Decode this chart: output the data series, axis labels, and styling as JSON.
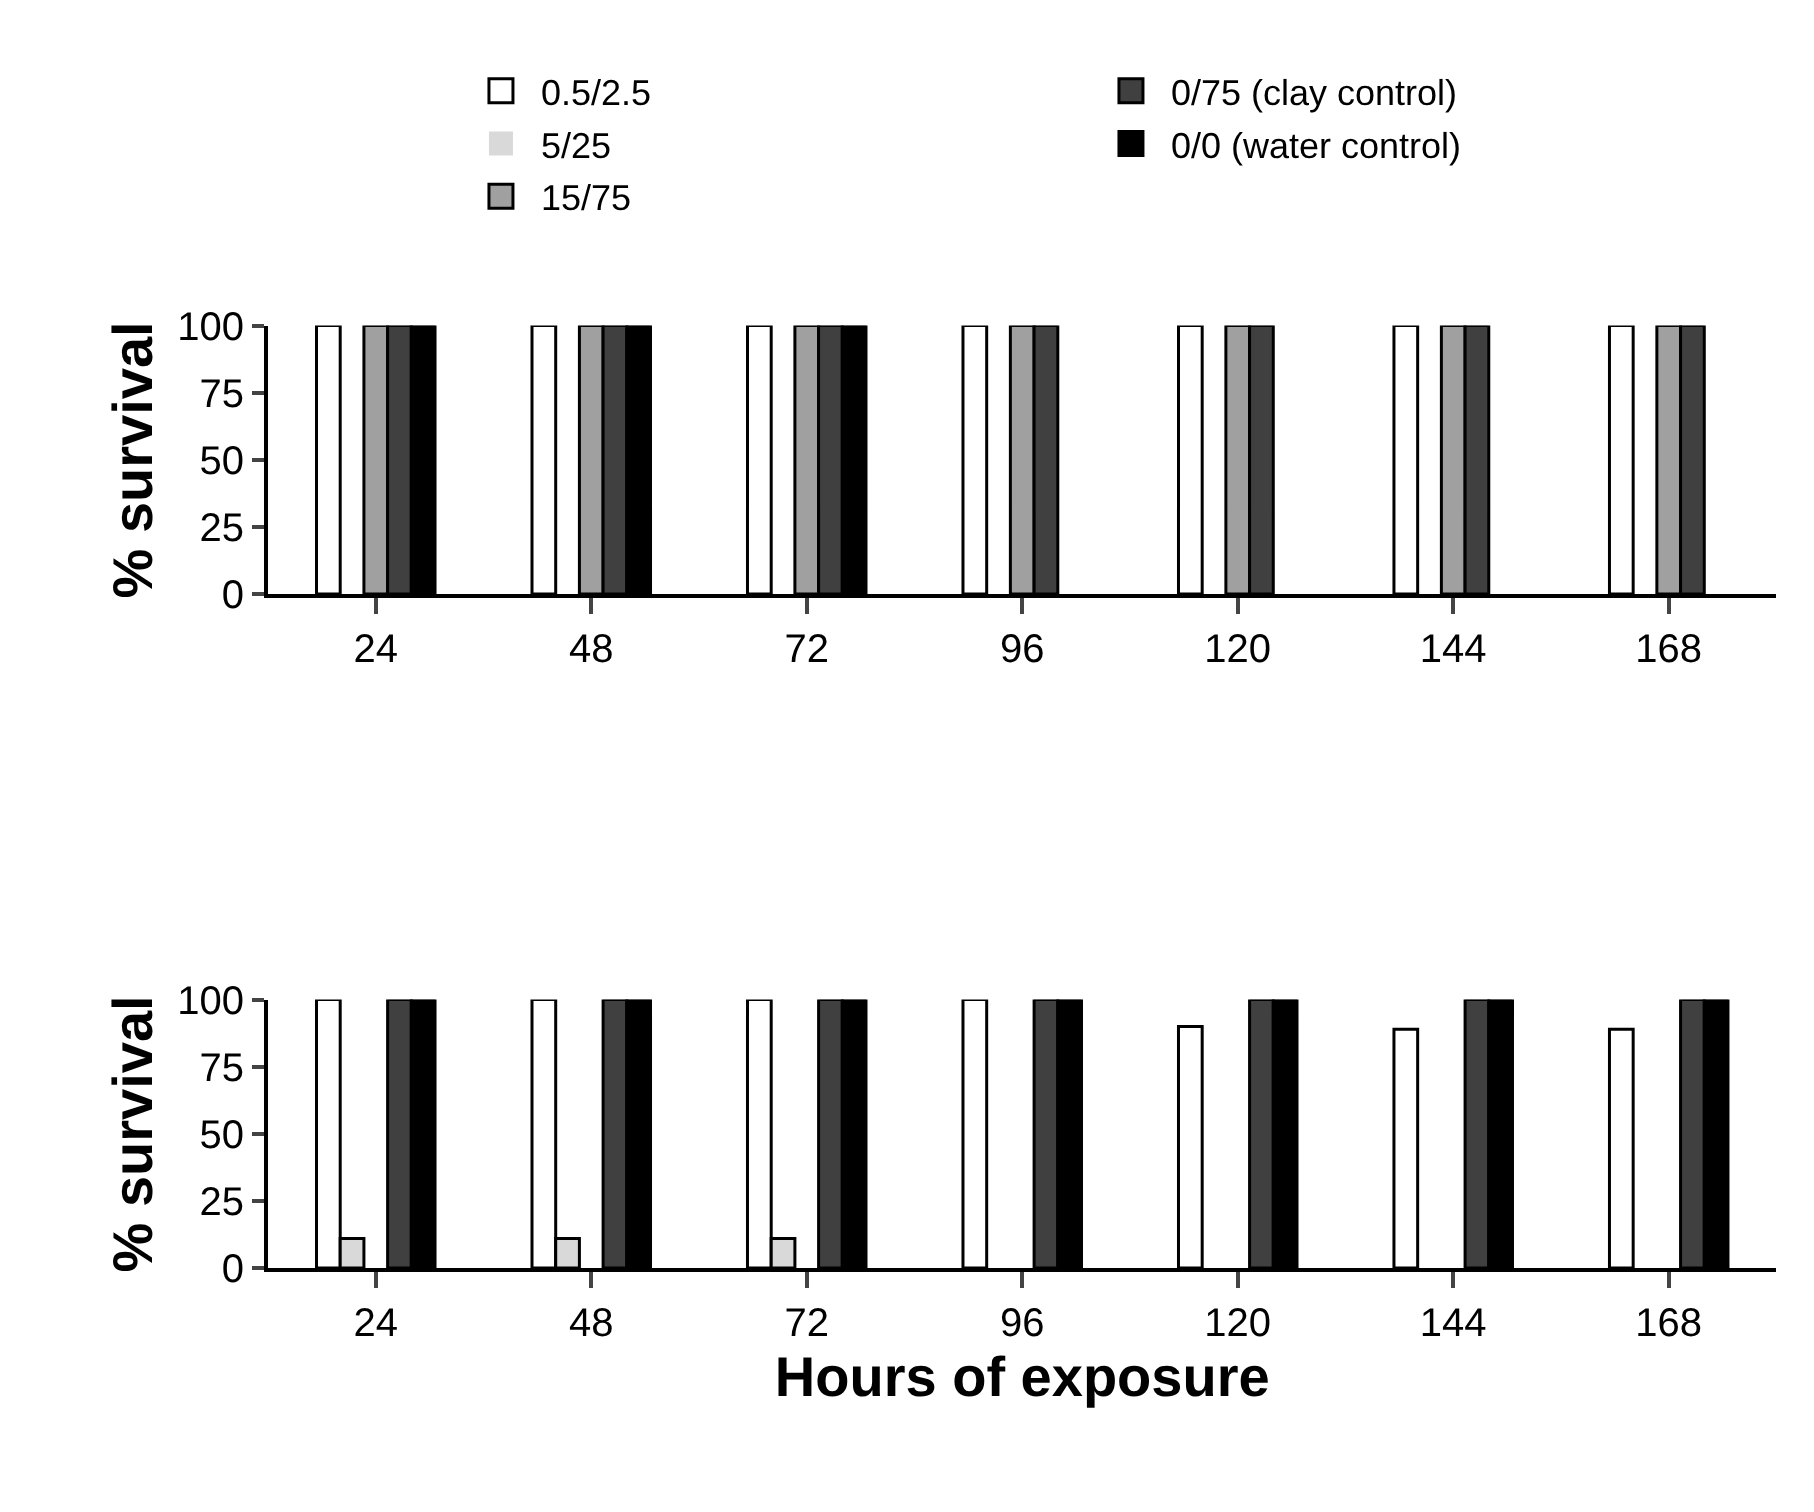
{
  "chart_data": [
    {
      "type": "bar",
      "categories": [
        "24",
        "48",
        "72",
        "96",
        "120",
        "144",
        "168"
      ],
      "ylabel": "% survival",
      "ylim": [
        0,
        100
      ],
      "yticks": [
        0,
        25,
        50,
        75,
        100
      ],
      "legend": "top",
      "series": [
        {
          "name": "0.5/2.5",
          "color": "#ffffff",
          "values": [
            100,
            100,
            100,
            100,
            100,
            100,
            100
          ]
        },
        {
          "name": "5/25",
          "color": "#d9d9d9",
          "values": [
            0,
            0,
            0,
            0,
            0,
            0,
            0
          ]
        },
        {
          "name": "15/75",
          "color": "#a0a0a0",
          "values": [
            100,
            100,
            100,
            100,
            100,
            100,
            100
          ]
        },
        {
          "name": "0/75 (clay control)",
          "color": "#404040",
          "values": [
            100,
            100,
            100,
            100,
            100,
            100,
            100
          ]
        },
        {
          "name": "0/0 (water control)",
          "color": "#000000",
          "values": [
            100,
            100,
            100,
            0,
            0,
            0,
            0
          ]
        }
      ]
    },
    {
      "type": "bar",
      "categories": [
        "24",
        "48",
        "72",
        "96",
        "120",
        "144",
        "168"
      ],
      "ylabel": "% survival",
      "xlabel": "Hours of exposure",
      "ylim": [
        0,
        100
      ],
      "yticks": [
        0,
        25,
        50,
        75,
        100
      ],
      "series": [
        {
          "color": "#ffffff",
          "values": [
            100,
            100,
            100,
            100,
            90,
            89,
            89
          ]
        },
        {
          "color": "#d9d9d9",
          "values": [
            11,
            11,
            11,
            0,
            0,
            0,
            0
          ]
        },
        {
          "color": "#a0a0a0",
          "values": [
            0,
            0,
            0,
            0,
            0,
            0,
            0
          ]
        },
        {
          "color": "#404040",
          "values": [
            100,
            100,
            100,
            100,
            100,
            100,
            100
          ]
        },
        {
          "color": "#000000",
          "values": [
            100,
            100,
            100,
            100,
            100,
            100,
            100
          ]
        }
      ]
    }
  ]
}
